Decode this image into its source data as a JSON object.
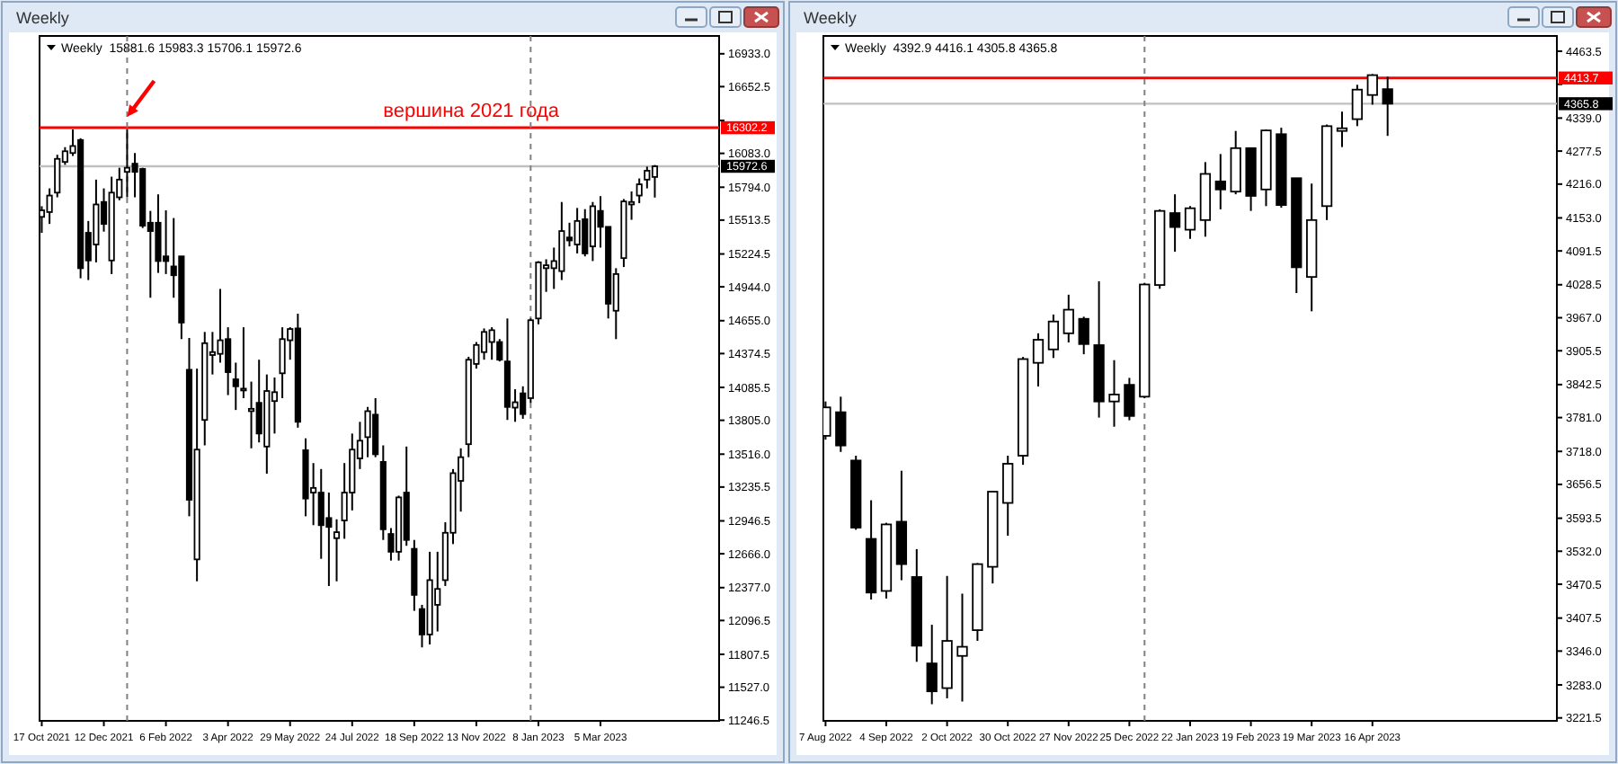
{
  "chart_data": [
    {
      "type": "candlestick",
      "title": "Weekly",
      "subtitle": "Weekly  15881.6 15983.3 15706.1 15972.6",
      "color": "#000000",
      "x": [
        "2021-10-17",
        "2021-10-24",
        "2021-10-31",
        "2021-11-07",
        "2021-11-14",
        "2021-11-21",
        "2021-11-28",
        "2021-12-05",
        "2021-12-12",
        "2021-12-19",
        "2021-12-26",
        "2022-01-02",
        "2022-01-09",
        "2022-01-16",
        "2022-01-23",
        "2022-01-30",
        "2022-02-06",
        "2022-02-13",
        "2022-02-20",
        "2022-02-27",
        "2022-03-06",
        "2022-03-13",
        "2022-03-20",
        "2022-03-27",
        "2022-04-03",
        "2022-04-10",
        "2022-04-17",
        "2022-04-24",
        "2022-05-01",
        "2022-05-08",
        "2022-05-15",
        "2022-05-22",
        "2022-05-29",
        "2022-06-05",
        "2022-06-12",
        "2022-06-19",
        "2022-06-26",
        "2022-07-03",
        "2022-07-10",
        "2022-07-17",
        "2022-07-24",
        "2022-07-31",
        "2022-08-07",
        "2022-08-14",
        "2022-08-21",
        "2022-08-28",
        "2022-09-04",
        "2022-09-11",
        "2022-09-18",
        "2022-09-25",
        "2022-10-02",
        "2022-10-09",
        "2022-10-16",
        "2022-10-23",
        "2022-10-30",
        "2022-11-06",
        "2022-11-13",
        "2022-11-20",
        "2022-11-27",
        "2022-12-04",
        "2022-12-11",
        "2022-12-18",
        "2022-12-25",
        "2023-01-01",
        "2023-01-08",
        "2023-01-15",
        "2023-01-22",
        "2023-01-29",
        "2023-02-05",
        "2023-02-12",
        "2023-02-19",
        "2023-02-26",
        "2023-03-05",
        "2023-03-12",
        "2023-03-19",
        "2023-03-26",
        "2023-04-02",
        "2023-04-09",
        "2023-04-16",
        "2023-04-23"
      ],
      "ohlc": [
        [
          15541,
          15632,
          15405,
          15597
        ],
        [
          15582,
          15784,
          15481,
          15723
        ],
        [
          15748,
          16071,
          15708,
          16036
        ],
        [
          16010,
          16136,
          15985,
          16101
        ],
        [
          16086,
          16287,
          16061,
          16146
        ],
        [
          16197,
          16212,
          15017,
          15103
        ],
        [
          15405,
          15506,
          15002,
          15169
        ],
        [
          15305,
          15859,
          15153,
          15647
        ],
        [
          15668,
          15784,
          15415,
          15481
        ],
        [
          15169,
          15884,
          15053,
          15748
        ],
        [
          15708,
          15960,
          15683,
          15859
        ],
        [
          15925,
          16290,
          15708,
          15960
        ],
        [
          15995,
          16086,
          15708,
          15925
        ],
        [
          15950,
          15960,
          15446,
          15466
        ],
        [
          15491,
          15592,
          14851,
          15420
        ],
        [
          15491,
          15733,
          15063,
          15164
        ],
        [
          15204,
          15597,
          15053,
          15164
        ],
        [
          15118,
          15531,
          14851,
          15043
        ],
        [
          15204,
          15204,
          14498,
          14639
        ],
        [
          14236,
          14508,
          12986,
          13127
        ],
        [
          12618,
          14246,
          12431,
          13555
        ],
        [
          13808,
          14559,
          13591,
          14463
        ],
        [
          14362,
          14559,
          14196,
          14387
        ],
        [
          14372,
          14926,
          14297,
          14488
        ],
        [
          14498,
          14599,
          14020,
          14216
        ],
        [
          14155,
          14297,
          13893,
          14095
        ],
        [
          14065,
          14599,
          13994,
          14075
        ],
        [
          13883,
          14135,
          13566,
          13903
        ],
        [
          13954,
          14322,
          13616,
          13692
        ],
        [
          13581,
          14196,
          13349,
          14055
        ],
        [
          13969,
          14170,
          13692,
          14045
        ],
        [
          14206,
          14599,
          13994,
          14498
        ],
        [
          14488,
          14599,
          14322,
          14584
        ],
        [
          14589,
          14715,
          13742,
          13792
        ],
        [
          13550,
          13651,
          12986,
          13137
        ],
        [
          13188,
          13440,
          12910,
          13228
        ],
        [
          13188,
          13389,
          12623,
          12910
        ],
        [
          12971,
          13188,
          12391,
          12895
        ],
        [
          12799,
          12960,
          12431,
          12850
        ],
        [
          12950,
          13440,
          12794,
          13188
        ],
        [
          13188,
          13692,
          13036,
          13555
        ],
        [
          13480,
          13792,
          13389,
          13631
        ],
        [
          13661,
          13919,
          13490,
          13883
        ],
        [
          13853,
          13994,
          13490,
          13515
        ],
        [
          13450,
          13591,
          12784,
          12875
        ],
        [
          12835,
          12885,
          12608,
          12683
        ],
        [
          12683,
          13162,
          12608,
          13147
        ],
        [
          13188,
          13581,
          12734,
          12784
        ],
        [
          12708,
          12784,
          12179,
          12315
        ],
        [
          12194,
          12230,
          11867,
          11977
        ],
        [
          11977,
          12683,
          11892,
          12441
        ],
        [
          12230,
          12683,
          12003,
          12366
        ],
        [
          12441,
          12935,
          12391,
          12845
        ],
        [
          12845,
          13389,
          12749,
          13354
        ],
        [
          13288,
          13566,
          13026,
          13490
        ],
        [
          13601,
          14347,
          13490,
          14322
        ],
        [
          14286,
          14473,
          14246,
          14448
        ],
        [
          14387,
          14589,
          14322,
          14559
        ],
        [
          14473,
          14599,
          14322,
          14574
        ],
        [
          14473,
          14498,
          14307,
          14322
        ],
        [
          14307,
          14674,
          13808,
          13919
        ],
        [
          13913,
          14070,
          13792,
          13959
        ],
        [
          14035,
          14095,
          13818,
          13858
        ],
        [
          13994,
          14674,
          13954,
          14659
        ],
        [
          14674,
          15163,
          14624,
          15153
        ],
        [
          15103,
          15179,
          14901,
          15128
        ],
        [
          15103,
          15279,
          14926,
          15164
        ],
        [
          15078,
          15668,
          15002,
          15420
        ],
        [
          15365,
          15491,
          15289,
          15340
        ],
        [
          15305,
          15617,
          15229,
          15506
        ],
        [
          15521,
          15607,
          15204,
          15229
        ],
        [
          15289,
          15668,
          15164,
          15632
        ],
        [
          15592,
          15718,
          15279,
          15456
        ],
        [
          15456,
          15456,
          14674,
          14800
        ],
        [
          14740,
          15103,
          14498,
          15053
        ],
        [
          15189,
          15693,
          15113,
          15673
        ],
        [
          15647,
          15758,
          15516,
          15668
        ],
        [
          15723,
          15869,
          15658,
          15819
        ],
        [
          15859,
          15970,
          15784,
          15935
        ],
        [
          15881.6,
          15983.3,
          15706.1,
          15972.6
        ]
      ],
      "xlim": [
        "2021-10-15",
        "2023-06-20"
      ],
      "ylim": [
        11240,
        17085
      ],
      "xticks": [
        {
          "value": "2021-10-17",
          "label": "17 Oct 2021"
        },
        {
          "value": "2021-12-12",
          "label": "12 Dec 2021"
        },
        {
          "value": "2022-02-06",
          "label": "6 Feb 2022"
        },
        {
          "value": "2022-04-03",
          "label": "3 Apr 2022"
        },
        {
          "value": "2022-05-29",
          "label": "29 May 2022"
        },
        {
          "value": "2022-07-24",
          "label": "24 Jul 2022"
        },
        {
          "value": "2022-09-18",
          "label": "18 Sep 2022"
        },
        {
          "value": "2022-11-13",
          "label": "13 Nov 2022"
        },
        {
          "value": "2023-01-08",
          "label": "8 Jan 2023"
        },
        {
          "value": "2023-03-05",
          "label": "5 Mar 2023"
        }
      ],
      "yticks": [
        {
          "value": 16933,
          "label": "16933.0"
        },
        {
          "value": 16652.5,
          "label": "16652.5"
        },
        {
          "value": 16363.5,
          "label": null
        },
        {
          "value": 16083,
          "label": "16083.0"
        },
        {
          "value": 15794,
          "label": "15794.0"
        },
        {
          "value": 15513.5,
          "label": "15513.5"
        },
        {
          "value": 15224.5,
          "label": "15224.5"
        },
        {
          "value": 14944,
          "label": "14944.0"
        },
        {
          "value": 14655,
          "label": "14655.0"
        },
        {
          "value": 14374.5,
          "label": "14374.5"
        },
        {
          "value": 14085.5,
          "label": "14085.5"
        },
        {
          "value": 13805,
          "label": "13805.0"
        },
        {
          "value": 13516,
          "label": "13516.0"
        },
        {
          "value": 13235.5,
          "label": "13235.5"
        },
        {
          "value": 12946.5,
          "label": "12946.5"
        },
        {
          "value": 12666,
          "label": "12666.0"
        },
        {
          "value": 12377,
          "label": "12377.0"
        },
        {
          "value": 12096.5,
          "label": "12096.5"
        },
        {
          "value": 11807.5,
          "label": "11807.5"
        },
        {
          "value": 11527,
          "label": "11527.0"
        },
        {
          "value": 11246.5,
          "label": "11246.5"
        }
      ],
      "ref_lines": [
        {
          "axis": "y",
          "value": 16302.2,
          "label": "16302.2",
          "color": "#ff0000"
        },
        {
          "axis": "y",
          "value": 15972.6,
          "label": "15972.6",
          "color": "#c0c0c0"
        },
        {
          "axis": "x",
          "value": "2022-01-02",
          "color": "#808080",
          "line_style": "dashed"
        },
        {
          "axis": "x",
          "value": "2023-01-01",
          "color": "#808080",
          "line_style": "dashed"
        }
      ],
      "annotations": [
        {
          "text": "вершина 2021 года",
          "x": "2022-08-21",
          "y": 16302.2
        }
      ]
    },
    {
      "type": "candlestick",
      "title": "Weekly",
      "subtitle": "Weekly  4392.9 4416.1 4305.8 4365.8",
      "color": "#000000",
      "x": [
        "2022-08-07",
        "2022-08-14",
        "2022-08-21",
        "2022-08-28",
        "2022-09-04",
        "2022-09-11",
        "2022-09-18",
        "2022-09-25",
        "2022-10-02",
        "2022-10-09",
        "2022-10-16",
        "2022-10-23",
        "2022-10-30",
        "2022-11-06",
        "2022-11-13",
        "2022-11-20",
        "2022-11-27",
        "2022-12-04",
        "2022-12-11",
        "2022-12-18",
        "2022-12-25",
        "2023-01-01",
        "2023-01-08",
        "2023-01-15",
        "2023-01-22",
        "2023-01-29",
        "2023-02-05",
        "2023-02-12",
        "2023-02-19",
        "2023-02-26",
        "2023-03-05",
        "2023-03-12",
        "2023-03-19",
        "2023-03-26",
        "2023-04-02",
        "2023-04-09",
        "2023-04-16",
        "2023-04-23"
      ],
      "ohlc": [
        [
          3747,
          3811,
          3740,
          3800
        ],
        [
          3791,
          3820,
          3717,
          3729
        ],
        [
          3701,
          3710,
          3572,
          3576
        ],
        [
          3555,
          3627,
          3442,
          3455
        ],
        [
          3458,
          3585,
          3444,
          3582
        ],
        [
          3587,
          3682,
          3478,
          3508
        ],
        [
          3484,
          3536,
          3326,
          3356
        ],
        [
          3323,
          3395,
          3247,
          3271
        ],
        [
          3277,
          3486,
          3258,
          3365
        ],
        [
          3337,
          3453,
          3252,
          3354
        ],
        [
          3385,
          3510,
          3365,
          3508
        ],
        [
          3503,
          3643,
          3472,
          3643
        ],
        [
          3622,
          3710,
          3561,
          3695
        ],
        [
          3710,
          3894,
          3693,
          3890
        ],
        [
          3883,
          3938,
          3839,
          3926
        ],
        [
          3908,
          3973,
          3892,
          3960
        ],
        [
          3938,
          4010,
          3921,
          3982
        ],
        [
          3965,
          3969,
          3899,
          3918
        ],
        [
          3916,
          4035,
          3781,
          3811
        ],
        [
          3811,
          3888,
          3764,
          3824
        ],
        [
          3842,
          3855,
          3776,
          3784
        ],
        [
          3820,
          4032,
          3817,
          4029
        ],
        [
          4028,
          4169,
          4021,
          4166
        ],
        [
          4162,
          4197,
          4090,
          4136
        ],
        [
          4131,
          4175,
          4114,
          4171
        ],
        [
          4149,
          4257,
          4118,
          4235
        ],
        [
          4221,
          4272,
          4169,
          4206
        ],
        [
          4202,
          4315,
          4197,
          4283
        ],
        [
          4283,
          4283,
          4166,
          4194
        ],
        [
          4206,
          4318,
          4175,
          4316
        ],
        [
          4309,
          4321,
          4172,
          4177
        ],
        [
          4227,
          4227,
          4013,
          4061
        ],
        [
          4043,
          4217,
          3979,
          4149
        ],
        [
          4175,
          4327,
          4149,
          4324
        ],
        [
          4315,
          4351,
          4285,
          4320
        ],
        [
          4337,
          4401,
          4324,
          4392
        ],
        [
          4382,
          4421,
          4364,
          4419
        ],
        [
          4392.9,
          4416.1,
          4305.8,
          4365.8
        ]
      ],
      "xlim": [
        "2022-08-06",
        "2023-07-10"
      ],
      "ylim": [
        3216,
        4492
      ],
      "xticks": [
        {
          "value": "2022-08-07",
          "label": "7 Aug 2022"
        },
        {
          "value": "2022-09-04",
          "label": "4 Sep 2022"
        },
        {
          "value": "2022-10-02",
          "label": "2 Oct 2022"
        },
        {
          "value": "2022-10-30",
          "label": "30 Oct 2022"
        },
        {
          "value": "2022-11-27",
          "label": "27 Nov 2022"
        },
        {
          "value": "2022-12-25",
          "label": "25 Dec 2022"
        },
        {
          "value": "2023-01-22",
          "label": "22 Jan 2023"
        },
        {
          "value": "2023-02-19",
          "label": "19 Feb 2023"
        },
        {
          "value": "2023-03-19",
          "label": "19 Mar 2023"
        },
        {
          "value": "2023-04-16",
          "label": "16 Apr 2023"
        }
      ],
      "yticks": [
        {
          "value": 4463.5,
          "label": "4463.5"
        },
        {
          "value": 4402,
          "label": null
        },
        {
          "value": 4339,
          "label": "4339.0"
        },
        {
          "value": 4277.5,
          "label": "4277.5"
        },
        {
          "value": 4216,
          "label": "4216.0"
        },
        {
          "value": 4153,
          "label": "4153.0"
        },
        {
          "value": 4091.5,
          "label": "4091.5"
        },
        {
          "value": 4028.5,
          "label": "4028.5"
        },
        {
          "value": 3967,
          "label": "3967.0"
        },
        {
          "value": 3905.5,
          "label": "3905.5"
        },
        {
          "value": 3842.5,
          "label": "3842.5"
        },
        {
          "value": 3781,
          "label": "3781.0"
        },
        {
          "value": 3718,
          "label": "3718.0"
        },
        {
          "value": 3656.5,
          "label": "3656.5"
        },
        {
          "value": 3593.5,
          "label": "3593.5"
        },
        {
          "value": 3532,
          "label": "3532.0"
        },
        {
          "value": 3470.5,
          "label": "3470.5"
        },
        {
          "value": 3407.5,
          "label": "3407.5"
        },
        {
          "value": 3346,
          "label": "3346.0"
        },
        {
          "value": 3283,
          "label": "3283.0"
        },
        {
          "value": 3221.5,
          "label": "3221.5"
        }
      ],
      "ref_lines": [
        {
          "axis": "y",
          "value": 4413.7,
          "label": "4413.7",
          "color": "#ff0000"
        },
        {
          "axis": "y",
          "value": 4365.8,
          "label": "4365.8",
          "color": "#c0c0c0"
        },
        {
          "axis": "x",
          "value": "2023-01-01",
          "color": "#808080",
          "line_style": "dashed"
        }
      ]
    }
  ]
}
